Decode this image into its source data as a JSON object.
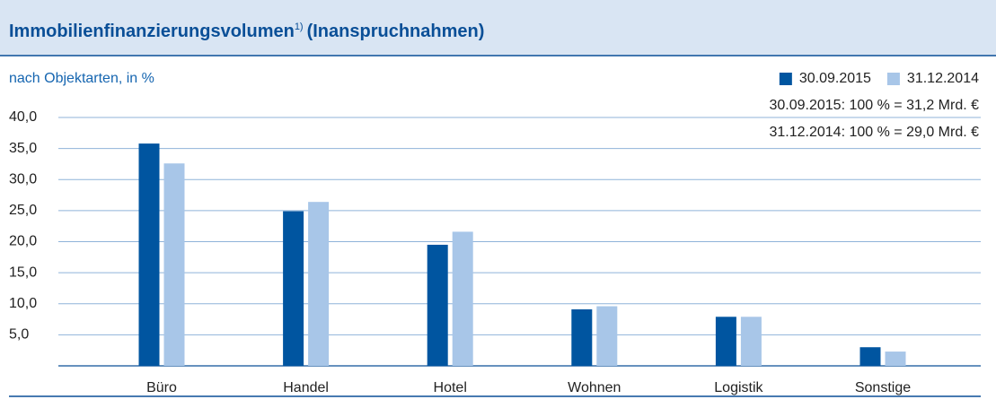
{
  "chart_data": {
    "type": "bar",
    "title": "Immobilienfinanzierungsvolumen",
    "title_note": "1)",
    "title_suffix": "(Inanspruchnahmen)",
    "subtitle": "nach Objektarten, in %",
    "annotations": [
      "30.09.2015: 100 % = 31,2 Mrd. €",
      "31.12.2014: 100 % = 29,0 Mrd. €"
    ],
    "categories": [
      "Büro",
      "Handel",
      "Hotel",
      "Wohnen",
      "Logistik",
      "Sonstige"
    ],
    "series": [
      {
        "name": "30.09.2015",
        "color": "#0055a0",
        "values": [
          35.8,
          24.9,
          19.5,
          9.1,
          7.9,
          3.0
        ]
      },
      {
        "name": "31.12.2014",
        "color": "#a8c6e8",
        "values": [
          32.6,
          26.4,
          21.6,
          9.6,
          7.9,
          2.3
        ]
      }
    ],
    "ylim": [
      0,
      40
    ],
    "yticks": [
      {
        "value": 5,
        "label": "5,0"
      },
      {
        "value": 10,
        "label": "10,0"
      },
      {
        "value": 15,
        "label": "15,0"
      },
      {
        "value": 20,
        "label": "20,0"
      },
      {
        "value": 25,
        "label": "25,0"
      },
      {
        "value": 30,
        "label": "30,0"
      },
      {
        "value": 35,
        "label": "35,0"
      },
      {
        "value": 40,
        "label": "40,0"
      }
    ],
    "grid": true,
    "legend": "top-right"
  }
}
